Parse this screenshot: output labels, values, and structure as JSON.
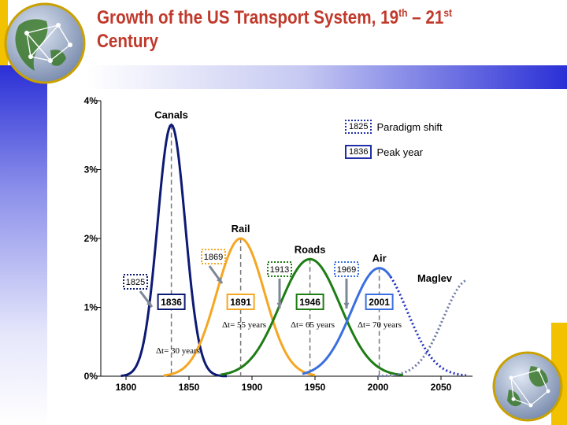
{
  "slide": {
    "title_main": "Growth of the US Transport System, 19",
    "title_sup1": "th",
    "title_mid": " – 21",
    "title_sup2": "st",
    "title_end": " Century"
  },
  "legend": {
    "paradigm_year": "1825",
    "paradigm_label": "Paradigm shift",
    "peak_year": "1836",
    "peak_label": "Peak year"
  },
  "colors": {
    "canals": "#0d1a73",
    "rail": "#f5a623",
    "roads": "#1e7d14",
    "air": "#3a6fe0",
    "maglev": "#6e7aa6",
    "title": "#c0392b"
  },
  "chart_data": {
    "type": "line",
    "title": "Growth of the US Transport System, 19th – 21st Century",
    "xlabel": "",
    "ylabel": "",
    "xlim": [
      1780,
      2075
    ],
    "ylim": [
      0,
      4
    ],
    "xticks": [
      1800,
      1850,
      1900,
      1950,
      2000,
      2050
    ],
    "xtick_labels": [
      "1800",
      "1850",
      "1900",
      "1950",
      "2000",
      "2050"
    ],
    "yticks": [
      0,
      1,
      2,
      3,
      4
    ],
    "ytick_labels": [
      "0%",
      "1%",
      "2%",
      "3%",
      "4%"
    ],
    "series": [
      {
        "name": "Canals",
        "peak_year": 1836,
        "peak_label": "1836",
        "peak_value": 3.65,
        "sigma": 11,
        "x_start": 1796,
        "x_end": 1880,
        "style": "solid",
        "color_key": "canals",
        "shift_label": "1825",
        "delta_label": "Δt= 30 years"
      },
      {
        "name": "Rail",
        "peak_year": 1891,
        "peak_label": "1891",
        "peak_value": 2.0,
        "sigma": 19,
        "x_start": 1830,
        "x_end": 1950,
        "style": "solid",
        "color_key": "rail",
        "shift_label": "1869",
        "delta_label": "Δt= 55 years"
      },
      {
        "name": "Roads",
        "peak_year": 1946,
        "peak_label": "1946",
        "peak_value": 1.7,
        "sigma": 24,
        "x_start": 1875,
        "x_end": 2020,
        "style": "solid",
        "color_key": "roads",
        "shift_label": "1913",
        "delta_label": "Δt= 65 years"
      },
      {
        "name": "Air",
        "peak_year": 2001,
        "peak_label": "2001",
        "peak_value": 1.57,
        "sigma": 22,
        "x_start": 1940,
        "x_end": 2010,
        "dotted_end": 2070,
        "style": "solid-dotted",
        "color_key": "air",
        "shift_label": "1969",
        "delta_label": "Δt= 70 years"
      },
      {
        "name": "Maglev",
        "peak_year": 2072,
        "peak_value": 1.4,
        "sigma": 20,
        "x_start": 2000,
        "x_end": 2070,
        "style": "dotted",
        "color_key": "maglev"
      }
    ]
  }
}
